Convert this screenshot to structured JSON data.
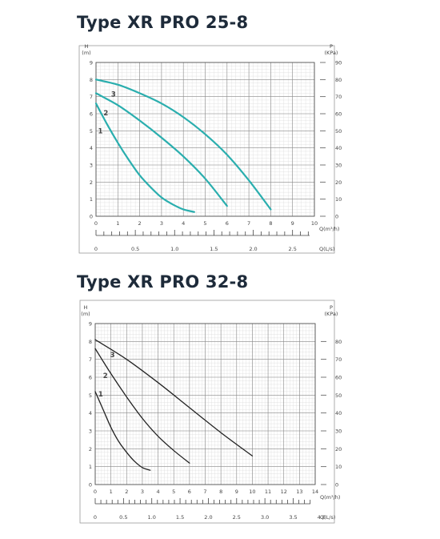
{
  "chart_data": [
    {
      "type": "line",
      "title": "Type XR PRO 25-8",
      "ylabel": "H",
      "yunit": "(m)",
      "y2label": "P",
      "y2unit": "(KPa)",
      "xlabel": "Q(m³/h)",
      "x2label": "Q(L/s)",
      "xlim": [
        0,
        10
      ],
      "ylim": [
        0,
        9
      ],
      "y2lim": [
        0,
        90
      ],
      "x_ticks": [
        "0",
        "1",
        "2",
        "3",
        "4",
        "5",
        "6",
        "7",
        "8",
        "9",
        "10"
      ],
      "y_ticks": [
        "0",
        "1",
        "2",
        "3",
        "4",
        "5",
        "6",
        "7",
        "8",
        "9"
      ],
      "y2_ticks": [
        "0",
        "10",
        "20",
        "30",
        "40",
        "50",
        "60",
        "70",
        "80",
        "90"
      ],
      "x2_ticks": [
        {
          "value": 0,
          "label": "0"
        },
        {
          "value": 0.5,
          "label": "0.5"
        },
        {
          "value": 1.0,
          "label": "1.0"
        },
        {
          "value": 1.5,
          "label": "1.5"
        },
        {
          "value": 2.0,
          "label": "2.0"
        },
        {
          "value": 2.5,
          "label": "2.5"
        }
      ],
      "x2_max": 2.778,
      "grid": true,
      "line_color": "#2aaeae",
      "series": [
        {
          "name": "1",
          "x": [
            0,
            0.5,
            1,
            1.5,
            2,
            2.5,
            3,
            3.5,
            4,
            4.5
          ],
          "y": [
            6.6,
            5.4,
            4.3,
            3.3,
            2.4,
            1.7,
            1.1,
            0.7,
            0.4,
            0.25
          ]
        },
        {
          "name": "2",
          "x": [
            0,
            1,
            2,
            3,
            4,
            5,
            6
          ],
          "y": [
            7.2,
            6.5,
            5.6,
            4.6,
            3.5,
            2.2,
            0.6
          ]
        },
        {
          "name": "3",
          "x": [
            0,
            1,
            2,
            3,
            4,
            5,
            6,
            7,
            8
          ],
          "y": [
            8.0,
            7.7,
            7.2,
            6.6,
            5.8,
            4.8,
            3.6,
            2.1,
            0.4
          ]
        }
      ],
      "series_label_pos": [
        {
          "x": 0.2,
          "y": 5.0
        },
        {
          "x": 0.45,
          "y": 6.05
        },
        {
          "x": 0.8,
          "y": 7.15
        }
      ]
    },
    {
      "type": "line",
      "title": "Type XR PRO 32-8",
      "ylabel": "H",
      "yunit": "(m)",
      "y2label": "P",
      "y2unit": "(KPa)",
      "xlabel": "Q(m³/h)",
      "x2label": "Q(L/s)",
      "xlim": [
        0,
        14
      ],
      "ylim": [
        0,
        9
      ],
      "y2lim": [
        0,
        90
      ],
      "x_ticks": [
        "0",
        "1",
        "2",
        "3",
        "4",
        "5",
        "6",
        "7",
        "8",
        "9",
        "10",
        "11",
        "12",
        "13",
        "14"
      ],
      "y_ticks": [
        "0",
        "1",
        "2",
        "3",
        "4",
        "5",
        "6",
        "7",
        "8",
        "9"
      ],
      "y2_ticks": [
        "0",
        "10",
        "20",
        "30",
        "40",
        "50",
        "60",
        "70",
        "80"
      ],
      "x2_ticks": [
        {
          "value": 0,
          "label": "0"
        },
        {
          "value": 0.5,
          "label": "0.5"
        },
        {
          "value": 1.0,
          "label": "1.0"
        },
        {
          "value": 1.5,
          "label": "1.5"
        },
        {
          "value": 2.0,
          "label": "2.0"
        },
        {
          "value": 2.5,
          "label": "2.5"
        },
        {
          "value": 3.0,
          "label": "3.0"
        },
        {
          "value": 3.5,
          "label": "3.5"
        },
        {
          "value": 4.0,
          "label": "4.0"
        }
      ],
      "x2_max": 3.889,
      "grid": true,
      "line_color": "#222222",
      "series": [
        {
          "name": "1",
          "x": [
            0,
            0.5,
            1,
            1.5,
            2,
            2.5,
            3,
            3.5
          ],
          "y": [
            5.2,
            4.2,
            3.2,
            2.4,
            1.8,
            1.3,
            0.95,
            0.8
          ]
        },
        {
          "name": "2",
          "x": [
            0,
            1,
            2,
            3,
            4,
            5,
            6
          ],
          "y": [
            7.6,
            6.2,
            4.9,
            3.7,
            2.7,
            1.9,
            1.2
          ]
        },
        {
          "name": "3",
          "x": [
            0,
            2,
            4,
            6,
            8,
            10
          ],
          "y": [
            8.1,
            7.0,
            5.7,
            4.3,
            2.9,
            1.6
          ]
        }
      ],
      "series_label_pos": [
        {
          "x": 0.35,
          "y": 5.05
        },
        {
          "x": 0.65,
          "y": 6.1
        },
        {
          "x": 1.1,
          "y": 7.25
        }
      ]
    }
  ]
}
